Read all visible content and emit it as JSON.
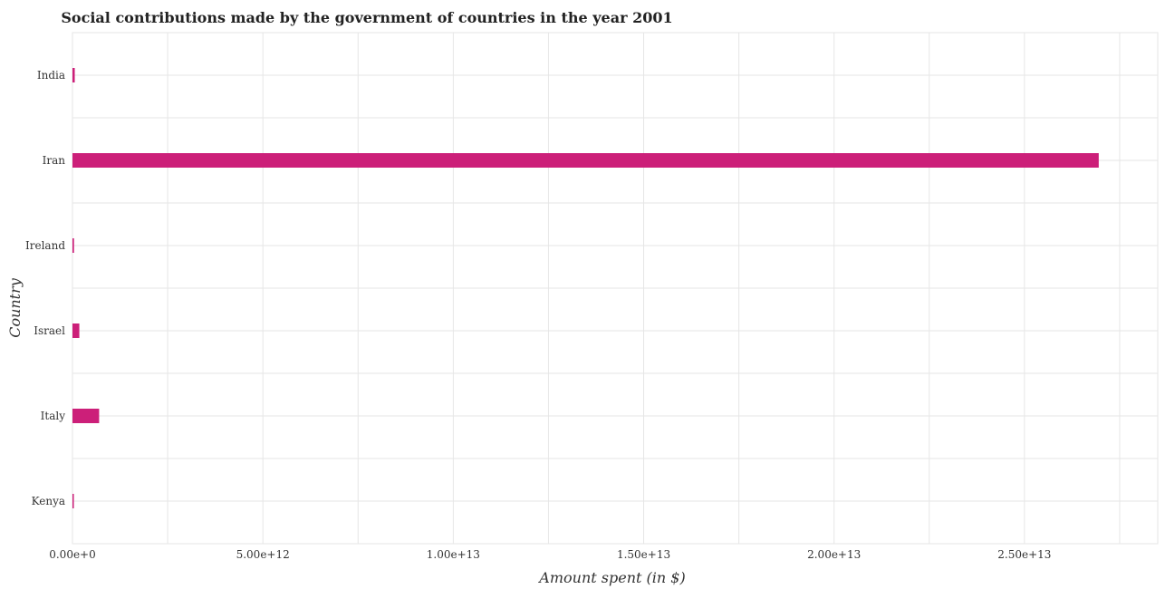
{
  "chart_data": {
    "type": "bar",
    "orientation": "horizontal",
    "title": "Social contributions made by the government of countries in the year 2001",
    "xlabel": "Amount spent (in $)",
    "ylabel": "Country",
    "categories": [
      "India",
      "Iran",
      "Ireland",
      "Israel",
      "Italy",
      "Kenya"
    ],
    "values": [
      60000000000,
      26950000000000,
      40000000000,
      180000000000,
      700000000000,
      10000000000
    ],
    "xlim": [
      0,
      28500000000000
    ],
    "xticks": [
      0,
      5000000000000,
      10000000000000,
      15000000000000,
      20000000000000,
      25000000000000
    ],
    "xtick_labels": [
      "0.00e+0",
      "5.00e+12",
      "1.00e+13",
      "1.50e+13",
      "2.00e+13",
      "2.50e+13"
    ],
    "bar_color": "#cc1f79",
    "grid": true,
    "legend": "none"
  }
}
